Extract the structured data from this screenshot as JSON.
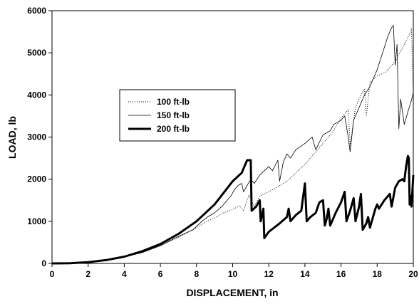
{
  "chart_data": {
    "type": "line",
    "xlabel": "DISPLACEMENT, in",
    "ylabel": "LOAD, lb",
    "xlim": [
      0,
      20
    ],
    "ylim": [
      0,
      6000
    ],
    "xticks": [
      "0",
      "2",
      "4",
      "6",
      "8",
      "10",
      "12",
      "14",
      "16",
      "18",
      "20"
    ],
    "yticks": [
      "0",
      "1000",
      "2000",
      "3000",
      "4000",
      "5000",
      "6000"
    ],
    "grid": false,
    "legend_position": "upper-left",
    "series": [
      {
        "name": "100 ft-lb",
        "style": "dotted",
        "points": [
          [
            0,
            0
          ],
          [
            1,
            5
          ],
          [
            2,
            25
          ],
          [
            3,
            70
          ],
          [
            4,
            150
          ],
          [
            5,
            260
          ],
          [
            6,
            420
          ],
          [
            7,
            620
          ],
          [
            8,
            850
          ],
          [
            8.6,
            1000
          ],
          [
            9,
            1080
          ],
          [
            9.5,
            1200
          ],
          [
            10,
            1280
          ],
          [
            10.4,
            1370
          ],
          [
            10.6,
            1250
          ],
          [
            10.9,
            1620
          ],
          [
            11.2,
            1350
          ],
          [
            11.5,
            1600
          ],
          [
            12,
            1700
          ],
          [
            12.5,
            1820
          ],
          [
            13,
            1950
          ],
          [
            13.5,
            2150
          ],
          [
            14,
            2350
          ],
          [
            14.5,
            2600
          ],
          [
            15,
            2850
          ],
          [
            15.5,
            3100
          ],
          [
            16,
            3450
          ],
          [
            16.4,
            3650
          ],
          [
            16.5,
            2800
          ],
          [
            16.8,
            3700
          ],
          [
            17,
            3900
          ],
          [
            17.3,
            4150
          ],
          [
            17.4,
            3500
          ],
          [
            17.6,
            4300
          ],
          [
            18,
            4450
          ],
          [
            18.5,
            4550
          ],
          [
            19,
            4800
          ],
          [
            19.5,
            5200
          ],
          [
            19.8,
            5450
          ],
          [
            19.9,
            5580
          ],
          [
            20,
            4000
          ]
        ]
      },
      {
        "name": "150 ft-lb",
        "style": "thin",
        "points": [
          [
            0,
            0
          ],
          [
            1,
            5
          ],
          [
            2,
            25
          ],
          [
            3,
            70
          ],
          [
            4,
            150
          ],
          [
            5,
            260
          ],
          [
            6,
            420
          ],
          [
            7,
            640
          ],
          [
            7.8,
            800
          ],
          [
            8.3,
            1000
          ],
          [
            8.6,
            1100
          ],
          [
            9,
            1200
          ],
          [
            9.4,
            1350
          ],
          [
            9.7,
            1500
          ],
          [
            9.9,
            1600
          ],
          [
            10.1,
            1750
          ],
          [
            10.3,
            1850
          ],
          [
            10.5,
            1900
          ],
          [
            10.6,
            1700
          ],
          [
            10.8,
            1850
          ],
          [
            11,
            2000
          ],
          [
            11.2,
            1900
          ],
          [
            11.5,
            2100
          ],
          [
            12,
            2300
          ],
          [
            12.2,
            2200
          ],
          [
            12.5,
            2450
          ],
          [
            12.6,
            1950
          ],
          [
            12.8,
            2400
          ],
          [
            13,
            2600
          ],
          [
            13.2,
            2500
          ],
          [
            13.5,
            2700
          ],
          [
            14,
            2850
          ],
          [
            14.4,
            3000
          ],
          [
            14.6,
            2700
          ],
          [
            15,
            3050
          ],
          [
            15.4,
            3150
          ],
          [
            15.6,
            3300
          ],
          [
            16,
            3400
          ],
          [
            16.2,
            3500
          ],
          [
            16.4,
            3000
          ],
          [
            16.5,
            2650
          ],
          [
            16.7,
            3400
          ],
          [
            17,
            3700
          ],
          [
            17.3,
            4000
          ],
          [
            17.6,
            4200
          ],
          [
            18,
            4600
          ],
          [
            18.3,
            5000
          ],
          [
            18.6,
            5400
          ],
          [
            18.8,
            5600
          ],
          [
            18.9,
            5650
          ],
          [
            19,
            4700
          ],
          [
            19.1,
            5200
          ],
          [
            19.2,
            3200
          ],
          [
            19.3,
            3900
          ],
          [
            19.5,
            3300
          ],
          [
            19.7,
            3600
          ],
          [
            19.85,
            3800
          ],
          [
            20,
            4050
          ]
        ]
      },
      {
        "name": "200 ft-lb",
        "style": "thick",
        "points": [
          [
            0,
            0
          ],
          [
            1,
            5
          ],
          [
            2,
            30
          ],
          [
            3,
            80
          ],
          [
            4,
            160
          ],
          [
            5,
            290
          ],
          [
            6,
            460
          ],
          [
            7,
            700
          ],
          [
            8,
            1000
          ],
          [
            9,
            1400
          ],
          [
            10,
            1950
          ],
          [
            10.5,
            2150
          ],
          [
            10.7,
            2350
          ],
          [
            10.8,
            2450
          ],
          [
            11,
            2450
          ],
          [
            11.05,
            1250
          ],
          [
            11.3,
            1350
          ],
          [
            11.5,
            1500
          ],
          [
            11.55,
            1000
          ],
          [
            11.7,
            1300
          ],
          [
            11.75,
            600
          ],
          [
            12,
            750
          ],
          [
            12.3,
            850
          ],
          [
            12.6,
            950
          ],
          [
            13,
            1100
          ],
          [
            13.1,
            1300
          ],
          [
            13.2,
            1000
          ],
          [
            13.5,
            1150
          ],
          [
            13.8,
            1250
          ],
          [
            14,
            1900
          ],
          [
            14.1,
            1000
          ],
          [
            14.3,
            1100
          ],
          [
            14.6,
            1200
          ],
          [
            14.8,
            1450
          ],
          [
            15,
            1500
          ],
          [
            15.1,
            900
          ],
          [
            15.2,
            1050
          ],
          [
            15.3,
            1300
          ],
          [
            15.4,
            900
          ],
          [
            15.7,
            1200
          ],
          [
            16,
            1450
          ],
          [
            16.2,
            1700
          ],
          [
            16.3,
            1000
          ],
          [
            16.5,
            1250
          ],
          [
            16.7,
            1550
          ],
          [
            16.8,
            1000
          ],
          [
            17,
            1350
          ],
          [
            17.1,
            1650
          ],
          [
            17.2,
            800
          ],
          [
            17.4,
            950
          ],
          [
            17.5,
            1100
          ],
          [
            17.6,
            850
          ],
          [
            17.9,
            1300
          ],
          [
            18,
            1400
          ],
          [
            18.1,
            1300
          ],
          [
            18.4,
            1500
          ],
          [
            18.7,
            1650
          ],
          [
            18.8,
            1350
          ],
          [
            19,
            1800
          ],
          [
            19.2,
            1950
          ],
          [
            19.4,
            2000
          ],
          [
            19.5,
            1950
          ],
          [
            19.6,
            2300
          ],
          [
            19.7,
            2550
          ],
          [
            19.75,
            2500
          ],
          [
            19.8,
            1400
          ],
          [
            19.85,
            1600
          ],
          [
            19.9,
            1350
          ],
          [
            20,
            2100
          ]
        ]
      }
    ]
  }
}
